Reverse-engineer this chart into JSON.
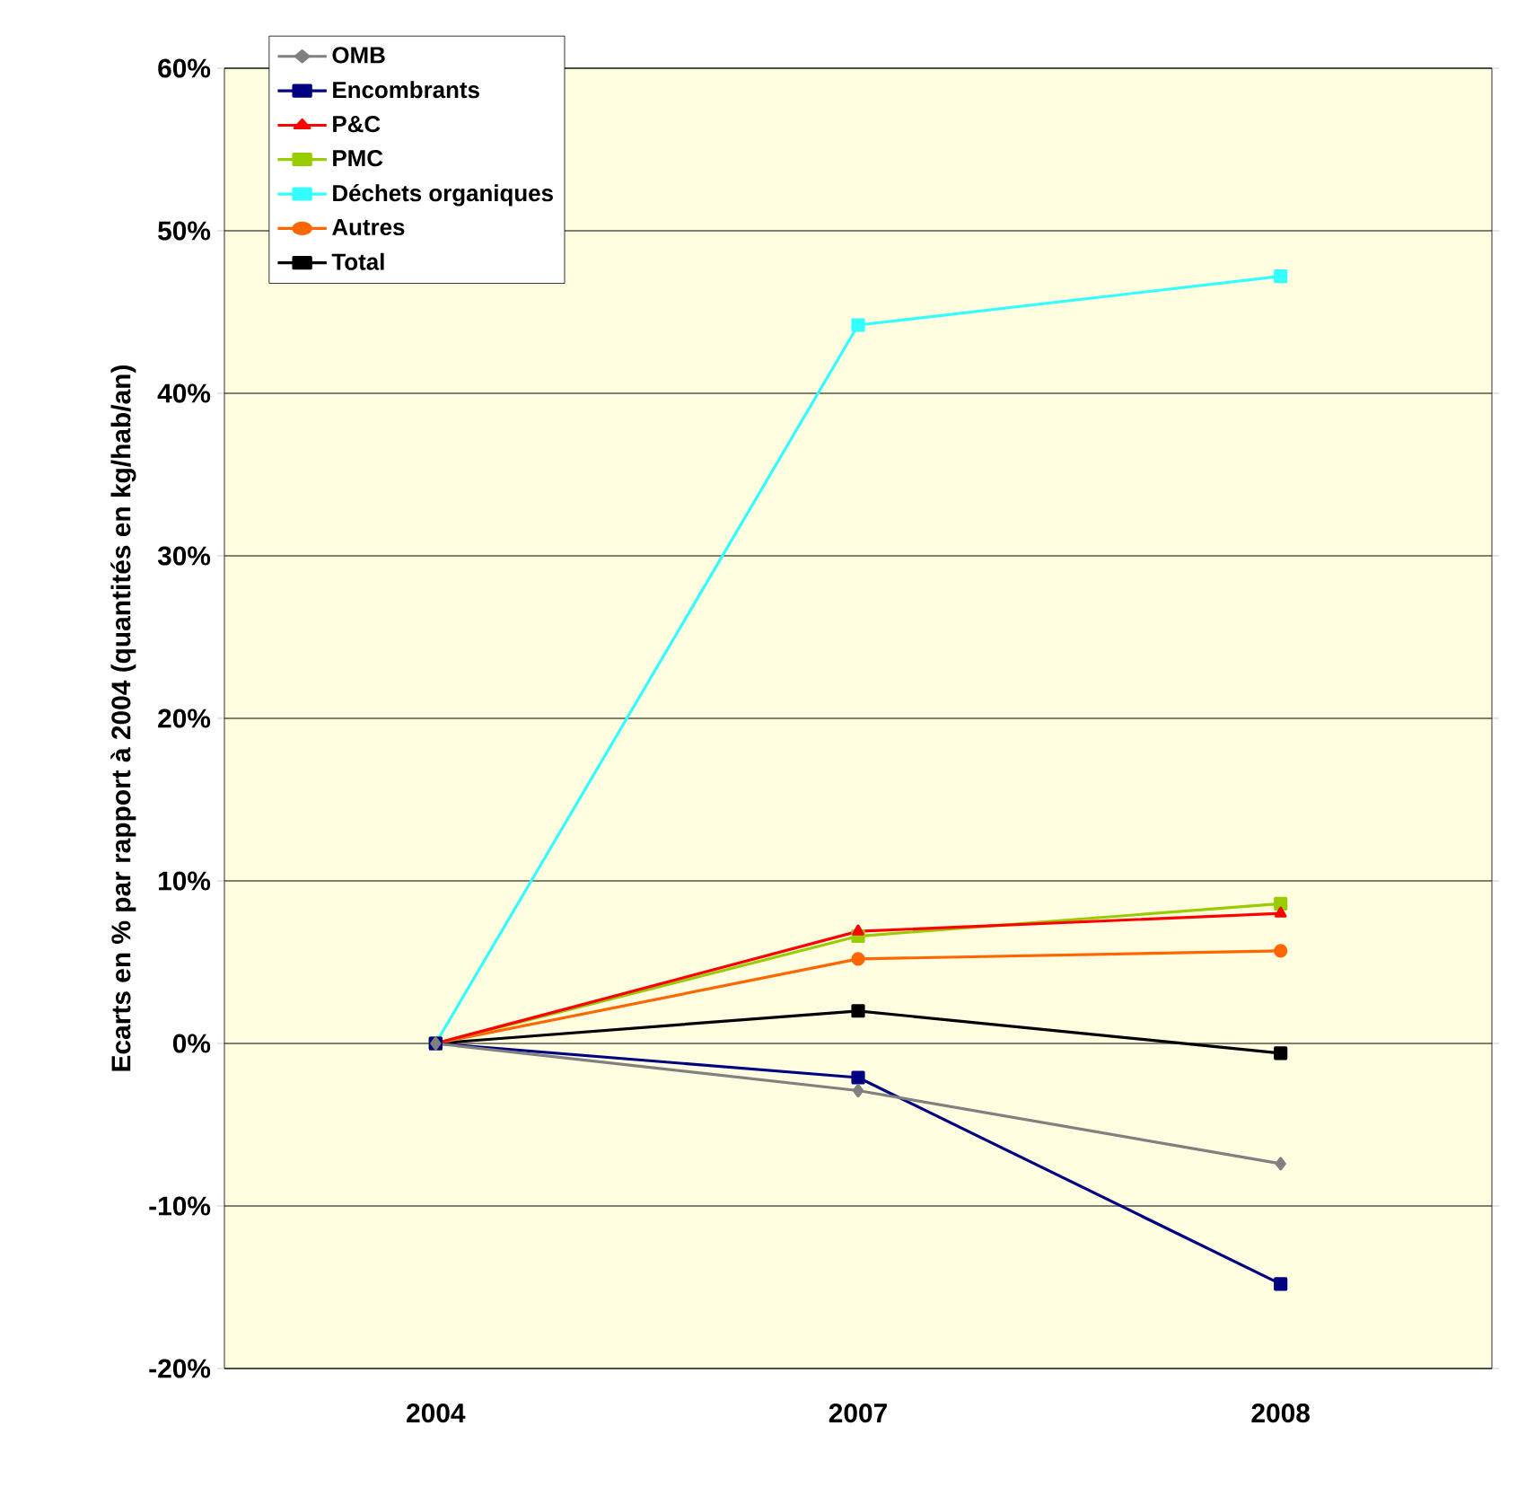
{
  "chart_data": {
    "type": "line",
    "ylabel": "Ecarts en % par rapport à 2004 (quantités en kg/hab/an)",
    "categories": [
      "2004",
      "2007",
      "2008"
    ],
    "series": [
      {
        "name": "OMB",
        "color": "#808080",
        "marker": "diamond",
        "values": [
          0,
          -2.9,
          -7.4
        ]
      },
      {
        "name": "Encombrants",
        "color": "#000080",
        "marker": "square",
        "values": [
          0,
          -2.1,
          -14.8
        ]
      },
      {
        "name": "P&C",
        "color": "#ff0000",
        "marker": "triangle",
        "values": [
          0,
          6.9,
          8.0
        ]
      },
      {
        "name": "PMC",
        "color": "#99cc00",
        "marker": "square",
        "values": [
          0,
          6.6,
          8.6
        ]
      },
      {
        "name": "Déchets organiques",
        "color": "#33ffff",
        "marker": "square",
        "values": [
          0,
          44.2,
          47.2
        ]
      },
      {
        "name": "Autres",
        "color": "#ff6600",
        "marker": "circle",
        "values": [
          0,
          5.2,
          5.7
        ]
      },
      {
        "name": "Total",
        "color": "#000000",
        "marker": "square",
        "values": [
          0,
          2.0,
          -0.6
        ]
      }
    ],
    "ylim": [
      -20,
      60
    ],
    "yticks": [
      {
        "value": -20,
        "label": "-20%"
      },
      {
        "value": -10,
        "label": "-10%"
      },
      {
        "value": 0,
        "label": "0%"
      },
      {
        "value": 10,
        "label": "10%"
      },
      {
        "value": 20,
        "label": "20%"
      },
      {
        "value": 30,
        "label": "30%"
      },
      {
        "value": 40,
        "label": "40%"
      },
      {
        "value": 50,
        "label": "50%"
      },
      {
        "value": 60,
        "label": "60%"
      }
    ],
    "grid": "y",
    "legend": "top left",
    "line_style": "solid"
  }
}
